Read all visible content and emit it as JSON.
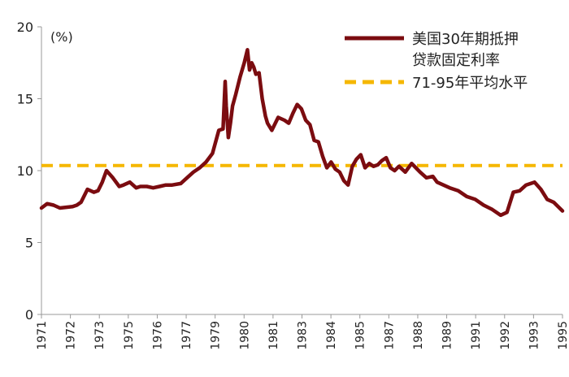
{
  "chart_data": {
    "type": "line",
    "unit_label": "(%)",
    "ylim": [
      0,
      20
    ],
    "y_ticks": [
      0,
      5,
      10,
      15,
      20
    ],
    "x_tick_labels": [
      "1971",
      "1972",
      "1973",
      "1975",
      "1976",
      "1977",
      "1979",
      "1980",
      "1981",
      "1983",
      "1984",
      "1985",
      "1987",
      "1988",
      "1989",
      "1991",
      "1992",
      "1993",
      "1995"
    ],
    "x_range": [
      1971.33,
      1995.92
    ],
    "series": [
      {
        "name": "美国30年期抵押贷款固定利率",
        "legend_lines": [
          "美国30年期抵押",
          "贷款固定利率"
        ],
        "color": "#7b0c10",
        "style": "solid",
        "x": [
          1971.33,
          1971.6,
          1971.9,
          1972.2,
          1972.5,
          1972.8,
          1973.0,
          1973.2,
          1973.5,
          1973.8,
          1974.0,
          1974.2,
          1974.4,
          1974.7,
          1975.0,
          1975.2,
          1975.5,
          1975.8,
          1976.0,
          1976.3,
          1976.6,
          1976.9,
          1977.2,
          1977.5,
          1977.9,
          1978.2,
          1978.5,
          1978.8,
          1979.1,
          1979.4,
          1979.7,
          1979.9,
          1980.0,
          1980.05,
          1980.15,
          1980.25,
          1980.35,
          1980.5,
          1980.7,
          1980.9,
          1981.05,
          1981.15,
          1981.25,
          1981.35,
          1981.45,
          1981.6,
          1981.75,
          1981.9,
          1982.0,
          1982.2,
          1982.5,
          1982.8,
          1983.0,
          1983.2,
          1983.4,
          1983.6,
          1983.8,
          1984.0,
          1984.2,
          1984.4,
          1984.6,
          1984.8,
          1985.0,
          1985.2,
          1985.4,
          1985.6,
          1985.8,
          1986.0,
          1986.2,
          1986.4,
          1986.6,
          1986.8,
          1987.0,
          1987.2,
          1987.4,
          1987.6,
          1987.8,
          1988.0,
          1988.2,
          1988.5,
          1988.8,
          1989.0,
          1989.2,
          1989.5,
          1989.8,
          1990.0,
          1990.3,
          1990.6,
          1991.0,
          1991.4,
          1991.8,
          1992.2,
          1992.6,
          1993.0,
          1993.3,
          1993.6,
          1993.9,
          1994.2,
          1994.6,
          1994.9,
          1995.2,
          1995.5,
          1995.92
        ],
        "values": [
          7.4,
          7.7,
          7.6,
          7.4,
          7.45,
          7.5,
          7.6,
          7.8,
          8.7,
          8.5,
          8.6,
          9.2,
          10.0,
          9.5,
          8.9,
          9.0,
          9.2,
          8.8,
          8.9,
          8.9,
          8.8,
          8.9,
          9.0,
          9.0,
          9.1,
          9.5,
          9.9,
          10.2,
          10.6,
          11.2,
          12.8,
          12.9,
          16.2,
          14.5,
          12.3,
          13.3,
          14.5,
          15.3,
          16.5,
          17.5,
          18.4,
          17.0,
          17.5,
          17.2,
          16.7,
          16.8,
          15.0,
          13.8,
          13.3,
          12.8,
          13.7,
          13.5,
          13.3,
          14.0,
          14.6,
          14.3,
          13.5,
          13.2,
          12.1,
          12.0,
          11.0,
          10.2,
          10.6,
          10.1,
          9.9,
          9.3,
          9.0,
          10.3,
          10.8,
          11.1,
          10.2,
          10.5,
          10.3,
          10.4,
          10.7,
          10.9,
          10.2,
          10.0,
          10.3,
          9.9,
          10.5,
          10.2,
          9.9,
          9.5,
          9.6,
          9.2,
          9.0,
          8.8,
          8.6,
          8.2,
          8.0,
          7.6,
          7.3,
          6.9,
          7.1,
          8.5,
          8.6,
          9.0,
          9.2,
          8.7,
          8.0,
          7.8,
          7.2
        ]
      },
      {
        "name": "71-95年平均水平",
        "legend_lines": [
          "71-95年平均水平"
        ],
        "color": "#f5b700",
        "style": "dashed",
        "value": 10.35
      }
    ],
    "xlabel": "",
    "ylabel": "",
    "legend_position": "top-right",
    "grid": false
  }
}
